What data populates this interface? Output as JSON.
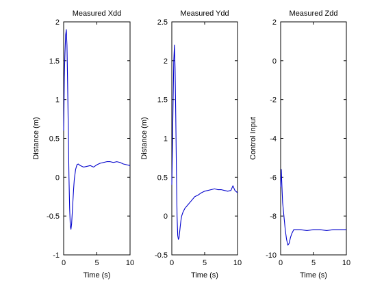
{
  "chart_data": [
    {
      "type": "line",
      "title": "Measured Xdd",
      "xlabel": "Time (s)",
      "ylabel": "Distance (m)",
      "xlim": [
        0,
        10
      ],
      "ylim": [
        -1,
        2
      ],
      "xticks": [
        0,
        5,
        10
      ],
      "yticks": [
        -1,
        -0.5,
        0,
        0.5,
        1,
        1.5,
        2
      ],
      "xtick_labels": [
        "0",
        "5",
        "10"
      ],
      "ytick_labels": [
        "-1",
        "-0.5",
        "0",
        "0.5",
        "1",
        "1.5",
        "2"
      ],
      "series": [
        {
          "color": "#0000cc",
          "x": [
            0,
            0.05,
            0.1,
            0.2,
            0.3,
            0.4,
            0.5,
            0.6,
            0.7,
            0.8,
            0.9,
            1.0,
            1.1,
            1.2,
            1.3,
            1.4,
            1.5,
            1.6,
            1.8,
            2.0,
            2.2,
            2.5,
            3.0,
            3.5,
            4.0,
            4.5,
            5.0,
            5.5,
            6.0,
            6.5,
            7.0,
            7.5,
            8.0,
            8.5,
            9.0,
            9.5,
            10.0
          ],
          "y": [
            0.6,
            0.9,
            1.3,
            1.6,
            1.83,
            1.9,
            1.7,
            1.2,
            0.6,
            0.0,
            -0.4,
            -0.63,
            -0.67,
            -0.6,
            -0.45,
            -0.3,
            -0.15,
            -0.03,
            0.1,
            0.16,
            0.17,
            0.15,
            0.13,
            0.14,
            0.15,
            0.13,
            0.16,
            0.18,
            0.19,
            0.2,
            0.2,
            0.19,
            0.2,
            0.19,
            0.17,
            0.16,
            0.15
          ]
        }
      ]
    },
    {
      "type": "line",
      "title": "Measured Ydd",
      "xlabel": "Time (s)",
      "ylabel": "Distance (m)",
      "xlim": [
        0,
        10
      ],
      "ylim": [
        -0.5,
        2.5
      ],
      "xticks": [
        0,
        5,
        10
      ],
      "yticks": [
        -0.5,
        0,
        0.5,
        1,
        1.5,
        2,
        2.5
      ],
      "xtick_labels": [
        "0",
        "5",
        "10"
      ],
      "ytick_labels": [
        "-0.5",
        "0",
        "0.5",
        "1",
        "1.5",
        "2",
        "2.5"
      ],
      "series": [
        {
          "color": "#0000cc",
          "x": [
            0,
            0.1,
            0.2,
            0.3,
            0.4,
            0.5,
            0.6,
            0.7,
            0.8,
            0.9,
            1.0,
            1.1,
            1.2,
            1.3,
            1.4,
            1.5,
            1.7,
            2.0,
            2.5,
            3.0,
            3.5,
            4.0,
            4.5,
            5.0,
            5.5,
            6.0,
            6.5,
            7.0,
            7.5,
            8.0,
            8.5,
            9.0,
            9.3,
            9.6,
            10.0
          ],
          "y": [
            0.4,
            0.9,
            1.5,
            2.0,
            2.2,
            1.9,
            1.3,
            0.6,
            0.0,
            -0.25,
            -0.3,
            -0.28,
            -0.2,
            -0.12,
            -0.05,
            0.0,
            0.05,
            0.1,
            0.15,
            0.2,
            0.25,
            0.27,
            0.3,
            0.32,
            0.33,
            0.34,
            0.35,
            0.34,
            0.34,
            0.33,
            0.32,
            0.33,
            0.39,
            0.33,
            0.3
          ]
        }
      ]
    },
    {
      "type": "line",
      "title": "Measured Zdd",
      "xlabel": "Time (s)",
      "ylabel": "Control Input",
      "xlim": [
        0,
        10
      ],
      "ylim": [
        -10,
        2
      ],
      "xticks": [
        0,
        5,
        10
      ],
      "yticks": [
        -10,
        -8,
        -6,
        -4,
        -2,
        0,
        2
      ],
      "xtick_labels": [
        "0",
        "5",
        "10"
      ],
      "ytick_labels": [
        "-10",
        "-8",
        "-6",
        "-4",
        "-2",
        "0",
        "2"
      ],
      "series": [
        {
          "color": "#0000cc",
          "x": [
            0,
            0.05,
            0.1,
            0.2,
            0.3,
            0.5,
            0.7,
            0.9,
            1.1,
            1.3,
            1.5,
            1.7,
            2.0,
            2.5,
            3.0,
            4.0,
            5.0,
            6.0,
            7.0,
            8.0,
            9.0,
            10.0
          ],
          "y": [
            -6.5,
            -6.0,
            -5.6,
            -6.5,
            -7.3,
            -8.0,
            -8.7,
            -9.2,
            -9.5,
            -9.4,
            -9.1,
            -8.9,
            -8.7,
            -8.7,
            -8.7,
            -8.75,
            -8.7,
            -8.7,
            -8.75,
            -8.7,
            -8.7,
            -8.7
          ]
        }
      ]
    }
  ]
}
